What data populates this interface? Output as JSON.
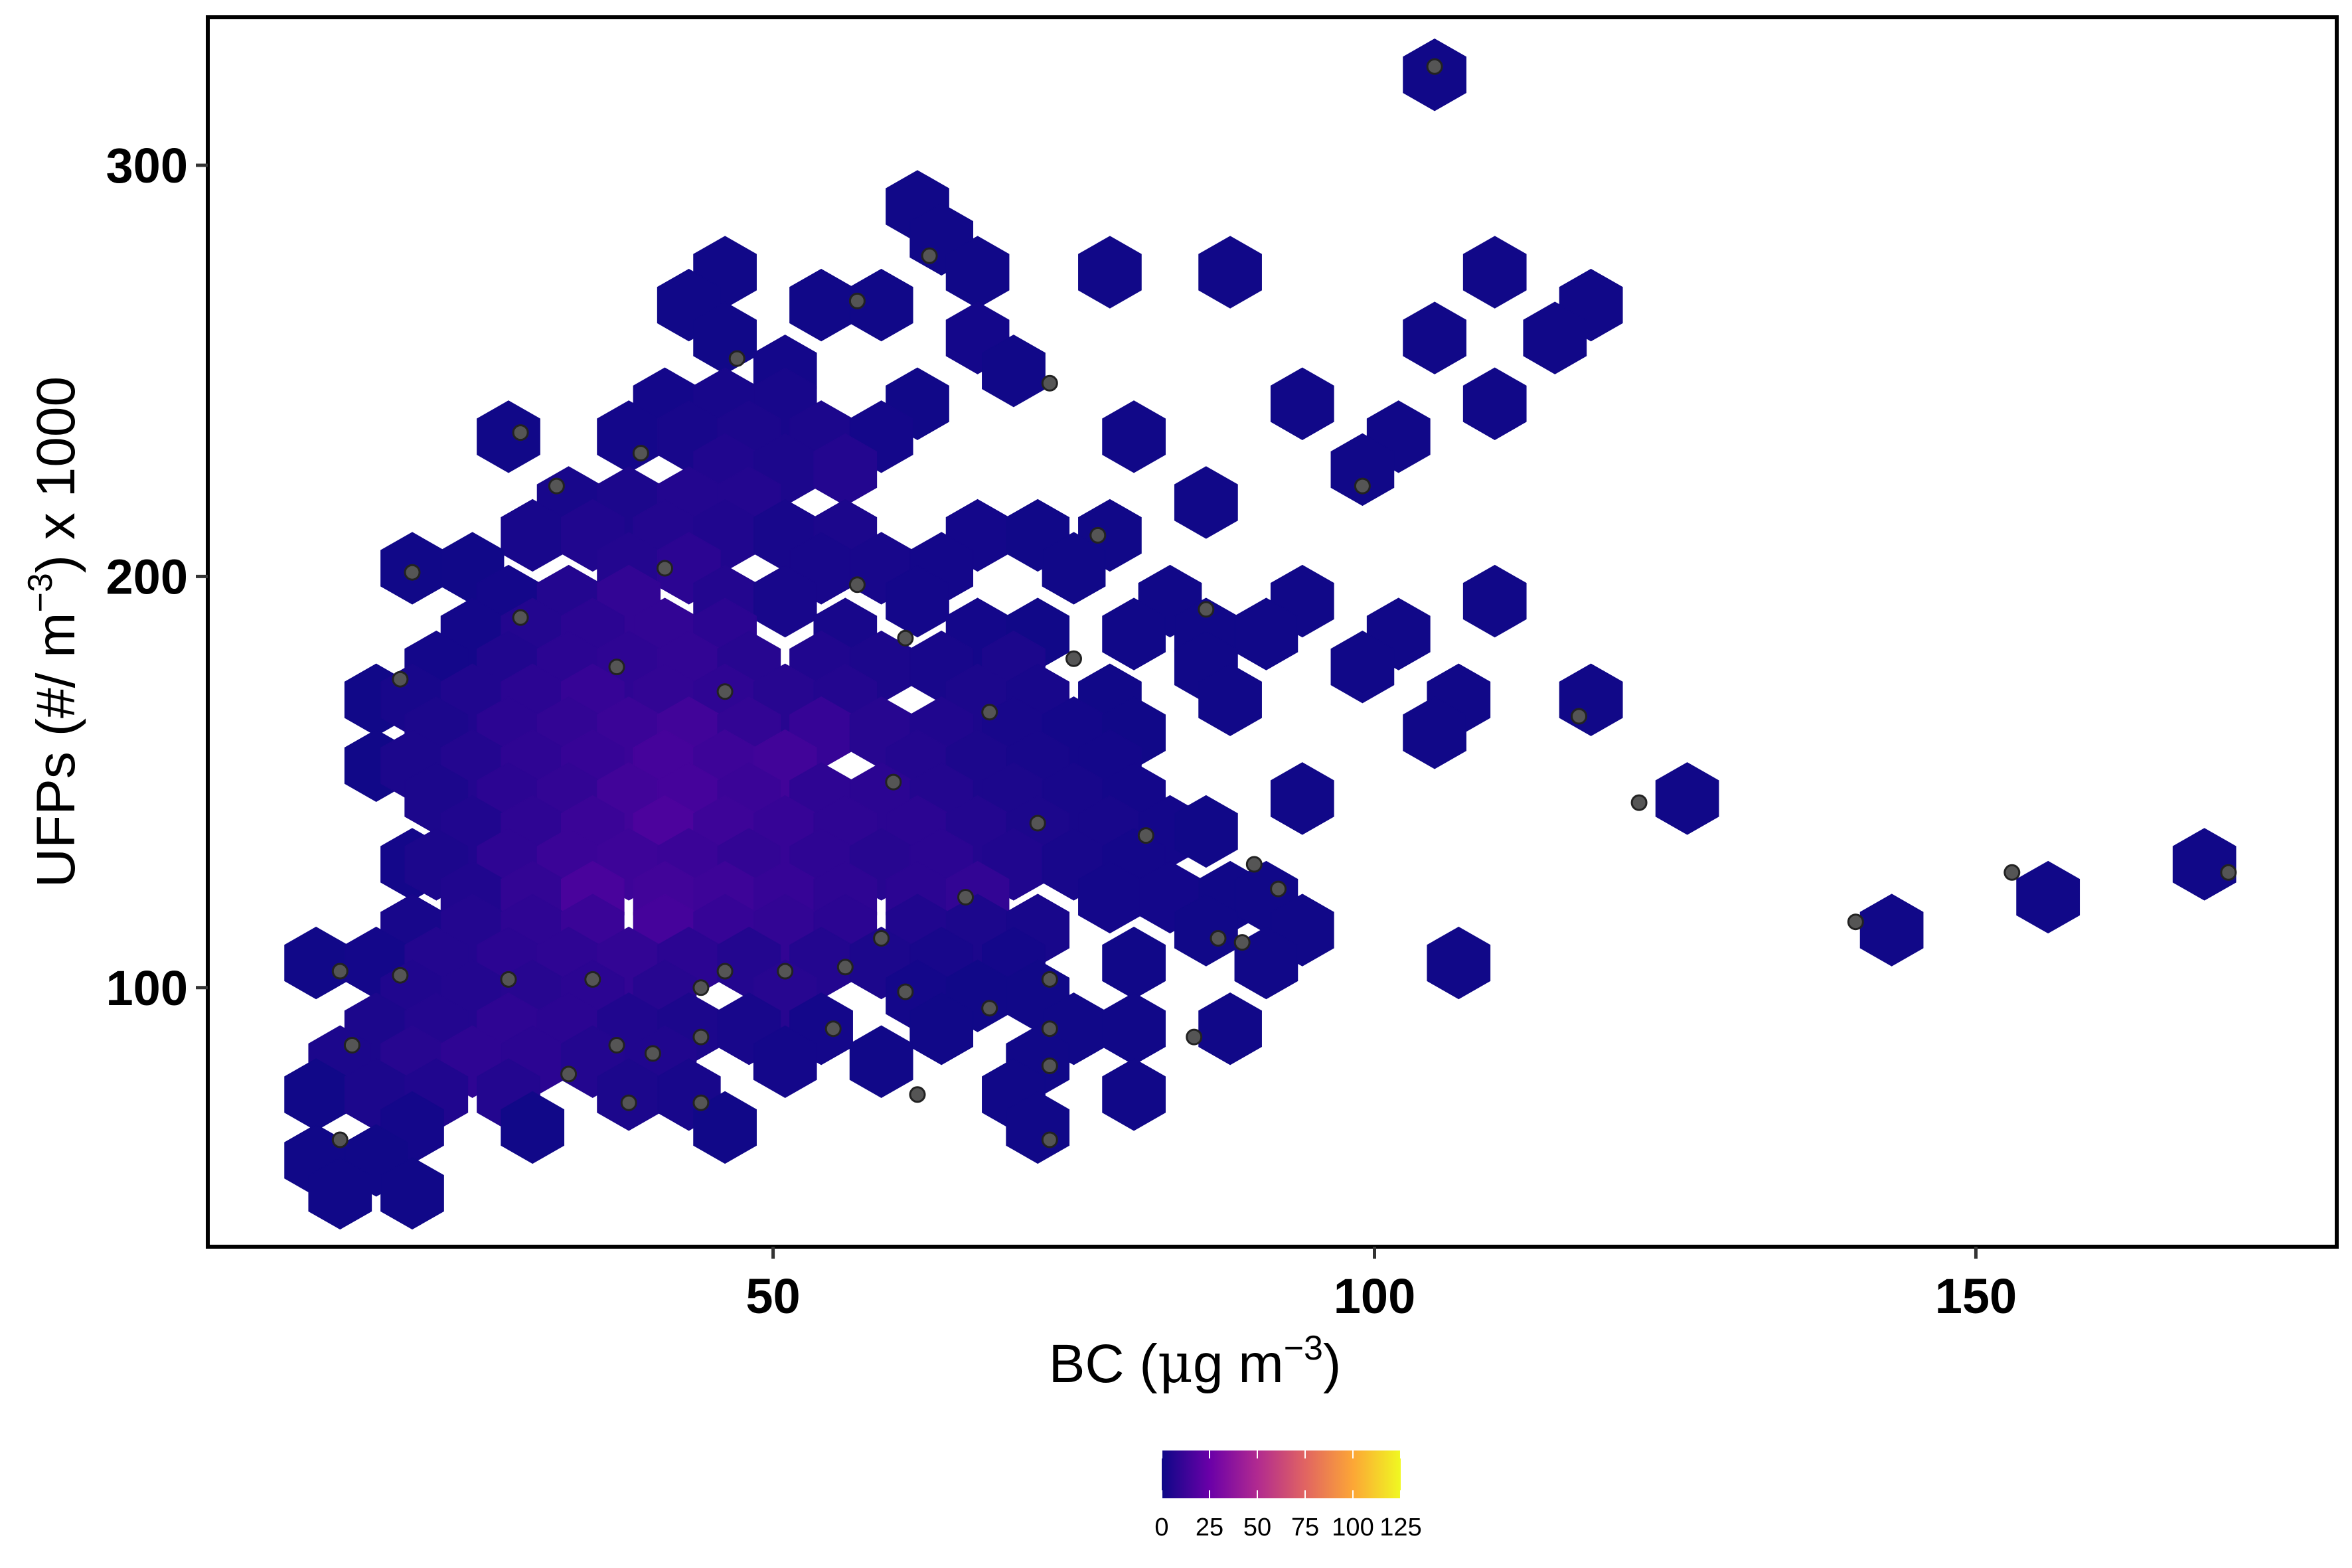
{
  "chart_data": {
    "type": "heatmap",
    "subtype": "hexbin",
    "title": "",
    "xlabel": "BC (μg m−3)",
    "xlabel_parts": {
      "prefix": "BC (",
      "mu": "μ",
      "unit": "g m",
      "sup": "−3",
      "suffix": ")"
    },
    "ylabel": "UFPs (#/ m−3) x 1000",
    "ylabel_parts": {
      "prefix": "UFPs (#/ m",
      "sup": "−3",
      "suffix": ") x 1000"
    },
    "xlim": [
      3,
      180
    ],
    "ylim": [
      37,
      336
    ],
    "x_ticks": [
      50,
      100,
      150
    ],
    "x_tick_labels": [
      "50",
      "100",
      "150"
    ],
    "y_ticks": [
      100,
      200,
      300
    ],
    "y_tick_labels": [
      "100",
      "200",
      "300"
    ],
    "grid": false,
    "legend": {
      "position": "bottom",
      "type": "colorbar",
      "palette": "plasma",
      "range": [
        0,
        125
      ],
      "breaks": [
        0,
        25,
        50,
        75,
        100,
        125
      ],
      "labels": [
        "0",
        "25",
        "50",
        "75",
        "100",
        "125"
      ],
      "colors": [
        "#0d0887",
        "#6a00a8",
        "#b12a90",
        "#e16462",
        "#fca636",
        "#f0f921"
      ]
    },
    "hex_bin_width": {
      "x": 5.2,
      "y": 15.8
    },
    "hexbins": [
      [
        105,
        322,
        1
      ],
      [
        62,
        290,
        1
      ],
      [
        64,
        282,
        1
      ],
      [
        67,
        274,
        1
      ],
      [
        46,
        274,
        1
      ],
      [
        78,
        274,
        1
      ],
      [
        88,
        274,
        1
      ],
      [
        110,
        274,
        1
      ],
      [
        43,
        266,
        1
      ],
      [
        54,
        266,
        1
      ],
      [
        59,
        266,
        1
      ],
      [
        118,
        266,
        1
      ],
      [
        46,
        258,
        1
      ],
      [
        67,
        258,
        2
      ],
      [
        105,
        258,
        1
      ],
      [
        115,
        258,
        1
      ],
      [
        51,
        250,
        2
      ],
      [
        70,
        250,
        1
      ],
      [
        41,
        242,
        2
      ],
      [
        46,
        242,
        3
      ],
      [
        51,
        242,
        3
      ],
      [
        62,
        242,
        1
      ],
      [
        94,
        242,
        1
      ],
      [
        110,
        242,
        1
      ],
      [
        28,
        234,
        1
      ],
      [
        38,
        234,
        2
      ],
      [
        43,
        234,
        3
      ],
      [
        48,
        234,
        4
      ],
      [
        54,
        234,
        4
      ],
      [
        59,
        234,
        2
      ],
      [
        80,
        234,
        1
      ],
      [
        102,
        234,
        1
      ],
      [
        46,
        226,
        5
      ],
      [
        51,
        226,
        4
      ],
      [
        56,
        226,
        6
      ],
      [
        99,
        226,
        1
      ],
      [
        33,
        218,
        3
      ],
      [
        38,
        218,
        4
      ],
      [
        43,
        218,
        6
      ],
      [
        48,
        218,
        6
      ],
      [
        86,
        218,
        1
      ],
      [
        30,
        210,
        3
      ],
      [
        35,
        210,
        5
      ],
      [
        41,
        210,
        6
      ],
      [
        46,
        210,
        5
      ],
      [
        51,
        210,
        3
      ],
      [
        56,
        210,
        4
      ],
      [
        67,
        210,
        2
      ],
      [
        72,
        210,
        1
      ],
      [
        78,
        210,
        1
      ],
      [
        20,
        202,
        1
      ],
      [
        25,
        202,
        1
      ],
      [
        38,
        202,
        6
      ],
      [
        43,
        202,
        8
      ],
      [
        54,
        202,
        3
      ],
      [
        59,
        202,
        3
      ],
      [
        64,
        202,
        2
      ],
      [
        75,
        202,
        1
      ],
      [
        28,
        194,
        2
      ],
      [
        33,
        194,
        6
      ],
      [
        38,
        194,
        10
      ],
      [
        46,
        194,
        6
      ],
      [
        51,
        194,
        3
      ],
      [
        62,
        194,
        2
      ],
      [
        83,
        194,
        1
      ],
      [
        94,
        194,
        1
      ],
      [
        110,
        194,
        1
      ],
      [
        25,
        186,
        2
      ],
      [
        30,
        186,
        6
      ],
      [
        35,
        186,
        8
      ],
      [
        41,
        186,
        10
      ],
      [
        46,
        186,
        8
      ],
      [
        56,
        186,
        3
      ],
      [
        67,
        186,
        2
      ],
      [
        72,
        186,
        1
      ],
      [
        80,
        186,
        1
      ],
      [
        86,
        186,
        1
      ],
      [
        91,
        186,
        1
      ],
      [
        102,
        186,
        1
      ],
      [
        22,
        178,
        2
      ],
      [
        28,
        178,
        5
      ],
      [
        33,
        178,
        8
      ],
      [
        38,
        178,
        9
      ],
      [
        43,
        178,
        10
      ],
      [
        48,
        178,
        7
      ],
      [
        54,
        178,
        5
      ],
      [
        59,
        178,
        4
      ],
      [
        64,
        178,
        3
      ],
      [
        70,
        178,
        4
      ],
      [
        86,
        178,
        1
      ],
      [
        99,
        178,
        1
      ],
      [
        17,
        170,
        1
      ],
      [
        20,
        170,
        3
      ],
      [
        25,
        170,
        5
      ],
      [
        30,
        170,
        8
      ],
      [
        35,
        170,
        11
      ],
      [
        41,
        170,
        10
      ],
      [
        46,
        170,
        9
      ],
      [
        51,
        170,
        7
      ],
      [
        56,
        170,
        6
      ],
      [
        67,
        170,
        4
      ],
      [
        72,
        170,
        3
      ],
      [
        78,
        170,
        1
      ],
      [
        88,
        170,
        1
      ],
      [
        107,
        170,
        1
      ],
      [
        118,
        170,
        1
      ],
      [
        22,
        162,
        4
      ],
      [
        28,
        162,
        8
      ],
      [
        33,
        162,
        10
      ],
      [
        38,
        162,
        12
      ],
      [
        43,
        162,
        14
      ],
      [
        48,
        162,
        10
      ],
      [
        54,
        162,
        11
      ],
      [
        59,
        162,
        7
      ],
      [
        64,
        162,
        5
      ],
      [
        70,
        162,
        3
      ],
      [
        75,
        162,
        2
      ],
      [
        80,
        162,
        1
      ],
      [
        105,
        162,
        1
      ],
      [
        17,
        154,
        1
      ],
      [
        20,
        154,
        4
      ],
      [
        25,
        154,
        6
      ],
      [
        30,
        154,
        9
      ],
      [
        35,
        154,
        11
      ],
      [
        41,
        154,
        15
      ],
      [
        46,
        154,
        13
      ],
      [
        51,
        154,
        14
      ],
      [
        62,
        154,
        6
      ],
      [
        67,
        154,
        4
      ],
      [
        72,
        154,
        3
      ],
      [
        78,
        154,
        2
      ],
      [
        22,
        146,
        4
      ],
      [
        28,
        146,
        8
      ],
      [
        33,
        146,
        10
      ],
      [
        38,
        146,
        14
      ],
      [
        43,
        146,
        15
      ],
      [
        48,
        146,
        12
      ],
      [
        54,
        146,
        9
      ],
      [
        59,
        146,
        8
      ],
      [
        64,
        146,
        6
      ],
      [
        70,
        146,
        4
      ],
      [
        75,
        146,
        3
      ],
      [
        80,
        146,
        2
      ],
      [
        94,
        146,
        1
      ],
      [
        126,
        146,
        1
      ],
      [
        25,
        138,
        5
      ],
      [
        30,
        138,
        9
      ],
      [
        35,
        138,
        12
      ],
      [
        41,
        138,
        17
      ],
      [
        46,
        138,
        13
      ],
      [
        51,
        138,
        11
      ],
      [
        56,
        138,
        9
      ],
      [
        62,
        138,
        8
      ],
      [
        67,
        138,
        6
      ],
      [
        72,
        138,
        4
      ],
      [
        78,
        138,
        3
      ],
      [
        83,
        138,
        2
      ],
      [
        86,
        138,
        1
      ],
      [
        20,
        130,
        2
      ],
      [
        22,
        130,
        4
      ],
      [
        28,
        130,
        9
      ],
      [
        33,
        130,
        12
      ],
      [
        38,
        130,
        13
      ],
      [
        43,
        130,
        12
      ],
      [
        48,
        130,
        10
      ],
      [
        54,
        130,
        9
      ],
      [
        59,
        130,
        7
      ],
      [
        64,
        130,
        8
      ],
      [
        70,
        130,
        5
      ],
      [
        75,
        130,
        3
      ],
      [
        80,
        130,
        2
      ],
      [
        169,
        130,
        1
      ],
      [
        25,
        122,
        5
      ],
      [
        30,
        122,
        10
      ],
      [
        35,
        122,
        16
      ],
      [
        41,
        122,
        14
      ],
      [
        46,
        122,
        13
      ],
      [
        51,
        122,
        11
      ],
      [
        56,
        122,
        9
      ],
      [
        62,
        122,
        8
      ],
      [
        67,
        122,
        10
      ],
      [
        78,
        122,
        2
      ],
      [
        83,
        122,
        2
      ],
      [
        88,
        122,
        1
      ],
      [
        91,
        122,
        1
      ],
      [
        156,
        122,
        1
      ],
      [
        20,
        114,
        3
      ],
      [
        25,
        114,
        6
      ],
      [
        30,
        114,
        9
      ],
      [
        35,
        114,
        12
      ],
      [
        41,
        114,
        15
      ],
      [
        46,
        114,
        11
      ],
      [
        51,
        114,
        10
      ],
      [
        56,
        114,
        8
      ],
      [
        62,
        114,
        5
      ],
      [
        67,
        114,
        4
      ],
      [
        72,
        114,
        3
      ],
      [
        86,
        114,
        1
      ],
      [
        94,
        114,
        1
      ],
      [
        143,
        114,
        1
      ],
      [
        12,
        106,
        1
      ],
      [
        17,
        106,
        2
      ],
      [
        22,
        106,
        6
      ],
      [
        28,
        106,
        8
      ],
      [
        33,
        106,
        9
      ],
      [
        38,
        106,
        10
      ],
      [
        43,
        106,
        8
      ],
      [
        48,
        106,
        6
      ],
      [
        54,
        106,
        6
      ],
      [
        59,
        106,
        4
      ],
      [
        64,
        106,
        3
      ],
      [
        70,
        106,
        2
      ],
      [
        80,
        106,
        1
      ],
      [
        91,
        106,
        1
      ],
      [
        107,
        106,
        1
      ],
      [
        20,
        98,
        5
      ],
      [
        25,
        98,
        6
      ],
      [
        30,
        98,
        7
      ],
      [
        35,
        98,
        8
      ],
      [
        41,
        98,
        7
      ],
      [
        51,
        98,
        7
      ],
      [
        62,
        98,
        2
      ],
      [
        67,
        98,
        1
      ],
      [
        72,
        98,
        1
      ],
      [
        17,
        90,
        4
      ],
      [
        22,
        90,
        6
      ],
      [
        28,
        90,
        9
      ],
      [
        33,
        90,
        8
      ],
      [
        38,
        90,
        5
      ],
      [
        43,
        90,
        4
      ],
      [
        48,
        90,
        3
      ],
      [
        54,
        90,
        2
      ],
      [
        64,
        90,
        1
      ],
      [
        75,
        90,
        1
      ],
      [
        80,
        90,
        1
      ],
      [
        88,
        90,
        1
      ],
      [
        14,
        82,
        4
      ],
      [
        20,
        82,
        7
      ],
      [
        25,
        82,
        9
      ],
      [
        30,
        82,
        8
      ],
      [
        35,
        82,
        6
      ],
      [
        41,
        82,
        5
      ],
      [
        51,
        82,
        2
      ],
      [
        59,
        82,
        1
      ],
      [
        72,
        82,
        1
      ],
      [
        12,
        74,
        1
      ],
      [
        17,
        74,
        4
      ],
      [
        22,
        74,
        5
      ],
      [
        28,
        74,
        6
      ],
      [
        38,
        74,
        4
      ],
      [
        43,
        74,
        3
      ],
      [
        70,
        74,
        1
      ],
      [
        80,
        74,
        1
      ],
      [
        20,
        66,
        2
      ],
      [
        30,
        66,
        1
      ],
      [
        46,
        66,
        1
      ],
      [
        72,
        66,
        1
      ],
      [
        12,
        58,
        1
      ],
      [
        17,
        58,
        1
      ],
      [
        14,
        50,
        1
      ],
      [
        20,
        50,
        1
      ]
    ],
    "points": [
      [
        105,
        324
      ],
      [
        63,
        278
      ],
      [
        57,
        267
      ],
      [
        47,
        253
      ],
      [
        73,
        247
      ],
      [
        29,
        235
      ],
      [
        32,
        222
      ],
      [
        39,
        230
      ],
      [
        77,
        210
      ],
      [
        99,
        222
      ],
      [
        20,
        201
      ],
      [
        29,
        190
      ],
      [
        41,
        202
      ],
      [
        57,
        198
      ],
      [
        61,
        185
      ],
      [
        75,
        180
      ],
      [
        86,
        192
      ],
      [
        19,
        175
      ],
      [
        37,
        178
      ],
      [
        46,
        172
      ],
      [
        68,
        167
      ],
      [
        60,
        150
      ],
      [
        72,
        140
      ],
      [
        81,
        137
      ],
      [
        90,
        130
      ],
      [
        92,
        124
      ],
      [
        122,
        145
      ],
      [
        117,
        166
      ],
      [
        153,
        128
      ],
      [
        171,
        128
      ],
      [
        140,
        116
      ],
      [
        59,
        112
      ],
      [
        66,
        122
      ],
      [
        87,
        112
      ],
      [
        89,
        111
      ],
      [
        14,
        104
      ],
      [
        19,
        103
      ],
      [
        46,
        104
      ],
      [
        51,
        104
      ],
      [
        56,
        105
      ],
      [
        28,
        102
      ],
      [
        35,
        102
      ],
      [
        44,
        100
      ],
      [
        61,
        99
      ],
      [
        73,
        102
      ],
      [
        55,
        90
      ],
      [
        68,
        95
      ],
      [
        73,
        90
      ],
      [
        85,
        88
      ],
      [
        37,
        86
      ],
      [
        15,
        86
      ],
      [
        40,
        84
      ],
      [
        73,
        81
      ],
      [
        38,
        72
      ],
      [
        44,
        72
      ],
      [
        62,
        74
      ],
      [
        14,
        63
      ],
      [
        73,
        63
      ],
      [
        44,
        88
      ],
      [
        33,
        79
      ]
    ]
  }
}
